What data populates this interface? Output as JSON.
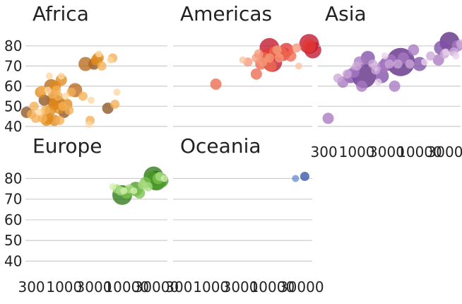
{
  "chart_data": {
    "type": "scatter",
    "x_scale": "log",
    "xlim": [
      240,
      45000
    ],
    "ylim": [
      35,
      87
    ],
    "x_ticks": [
      300,
      1000,
      3000,
      10000,
      30000
    ],
    "x_tick_labels": [
      "300",
      "1000",
      "3000",
      "10000",
      "30000"
    ],
    "y_ticks": [
      40,
      50,
      60,
      70,
      80
    ],
    "y_tick_labels": [
      "40",
      "50",
      "60",
      "70",
      "80"
    ],
    "grid": "horizontal",
    "panels": [
      {
        "name": "Africa",
        "colors": [
          "#ffd7a3",
          "#f5b054",
          "#e08a1c",
          "#b86a1e",
          "#8c5424"
        ],
        "points": [
          [
            250,
            47,
            4
          ],
          [
            300,
            46,
            1
          ],
          [
            330,
            50,
            1
          ],
          [
            350,
            44,
            1
          ],
          [
            400,
            47,
            0
          ],
          [
            420,
            57,
            2
          ],
          [
            450,
            58,
            1
          ],
          [
            480,
            53,
            4
          ],
          [
            500,
            48,
            1
          ],
          [
            520,
            43,
            2
          ],
          [
            550,
            44,
            2
          ],
          [
            550,
            58,
            0
          ],
          [
            580,
            65,
            0
          ],
          [
            600,
            48,
            2
          ],
          [
            620,
            60,
            3
          ],
          [
            650,
            56,
            1
          ],
          [
            680,
            53,
            3
          ],
          [
            700,
            51,
            2
          ],
          [
            700,
            43,
            2
          ],
          [
            720,
            60,
            2
          ],
          [
            750,
            58,
            1
          ],
          [
            780,
            52,
            3
          ],
          [
            800,
            55,
            1
          ],
          [
            830,
            49,
            2
          ],
          [
            850,
            43,
            1
          ],
          [
            900,
            65,
            0
          ],
          [
            900,
            63,
            2
          ],
          [
            950,
            50,
            1
          ],
          [
            1000,
            47,
            4
          ],
          [
            1050,
            55,
            0
          ],
          [
            1100,
            51,
            2
          ],
          [
            1200,
            48,
            1
          ],
          [
            1300,
            57,
            1
          ],
          [
            1500,
            58,
            3
          ],
          [
            2000,
            55,
            1
          ],
          [
            2200,
            71,
            3
          ],
          [
            2500,
            41,
            0
          ],
          [
            2600,
            43,
            1
          ],
          [
            3000,
            71,
            4
          ],
          [
            3300,
            73,
            2
          ],
          [
            3500,
            74,
            2
          ],
          [
            3600,
            76,
            0
          ],
          [
            4000,
            70,
            1
          ],
          [
            5000,
            49,
            4
          ],
          [
            5500,
            73,
            0
          ],
          [
            6000,
            74,
            1
          ],
          [
            6500,
            51,
            1
          ],
          [
            7000,
            57,
            0
          ],
          [
            2700,
            53,
            0
          ],
          [
            450,
            44,
            1
          ]
        ]
      },
      {
        "name": "Americas",
        "colors": [
          "#fbc4a0",
          "#f59a7a",
          "#ee6a4f",
          "#e33a35",
          "#c0162b"
        ],
        "points": [
          [
            1200,
            61,
            2
          ],
          [
            3300,
            73,
            0
          ],
          [
            4000,
            72,
            1
          ],
          [
            5500,
            74,
            1
          ],
          [
            5500,
            66,
            2
          ],
          [
            6500,
            71,
            2
          ],
          [
            7000,
            72,
            1
          ],
          [
            8000,
            75,
            3
          ],
          [
            9000,
            74,
            1
          ],
          [
            10000,
            72,
            4
          ],
          [
            10000,
            76,
            3
          ],
          [
            11000,
            77,
            2
          ],
          [
            12000,
            78,
            1
          ],
          [
            13000,
            74,
            1
          ],
          [
            14000,
            77,
            2
          ],
          [
            15000,
            76,
            3
          ],
          [
            17000,
            78,
            3
          ],
          [
            20000,
            75,
            2
          ],
          [
            25000,
            79,
            1
          ],
          [
            27000,
            70,
            0
          ],
          [
            40000,
            81,
            4
          ],
          [
            40000,
            80,
            3
          ],
          [
            46000,
            78,
            4
          ],
          [
            7600,
            74,
            2
          ],
          [
            9500,
            70,
            2
          ],
          [
            6000,
            76,
            1
          ],
          [
            9000,
            79,
            4
          ]
        ]
      },
      {
        "name": "Asia",
        "colors": [
          "#ead4ea",
          "#cca8d8",
          "#a878c2",
          "#8050a8",
          "#5e2a84"
        ],
        "points": [
          [
            350,
            44,
            2
          ],
          [
            500,
            64,
            1
          ],
          [
            600,
            62,
            2
          ],
          [
            700,
            66,
            1
          ],
          [
            800,
            65,
            3
          ],
          [
            900,
            67,
            2
          ],
          [
            1000,
            70,
            1
          ],
          [
            1100,
            72,
            2
          ],
          [
            1200,
            60,
            2
          ],
          [
            1300,
            65,
            4
          ],
          [
            1500,
            74,
            3
          ],
          [
            2000,
            68,
            1
          ],
          [
            2200,
            62,
            0
          ],
          [
            2500,
            65,
            3
          ],
          [
            2600,
            70,
            2
          ],
          [
            3000,
            71,
            3
          ],
          [
            3300,
            71,
            1
          ],
          [
            3500,
            73,
            2
          ],
          [
            4000,
            60,
            2
          ],
          [
            4500,
            71,
            1
          ],
          [
            5000,
            72,
            4
          ],
          [
            5500,
            74,
            2
          ],
          [
            7000,
            71,
            1
          ],
          [
            8000,
            78,
            2
          ],
          [
            10000,
            71,
            3
          ],
          [
            12000,
            72,
            0
          ],
          [
            15000,
            75,
            1
          ],
          [
            20000,
            73,
            2
          ],
          [
            22000,
            79,
            3
          ],
          [
            25000,
            76,
            1
          ],
          [
            26000,
            77,
            0
          ],
          [
            30000,
            82,
            4
          ],
          [
            35000,
            77,
            1
          ],
          [
            38000,
            75,
            0
          ],
          [
            40000,
            80,
            2
          ],
          [
            45000,
            81,
            1
          ],
          [
            2800,
            75,
            0
          ],
          [
            1800,
            71,
            1
          ]
        ]
      },
      {
        "name": "Europe",
        "colors": [
          "#d4f0b0",
          "#a8dc80",
          "#78c050",
          "#4c9a2a",
          "#2e7818"
        ],
        "points": [
          [
            6000,
            76,
            0
          ],
          [
            7000,
            75,
            1
          ],
          [
            8000,
            74,
            1
          ],
          [
            8500,
            72,
            4
          ],
          [
            9000,
            74,
            0
          ],
          [
            10000,
            73,
            2
          ],
          [
            11000,
            75,
            1
          ],
          [
            13000,
            74,
            0
          ],
          [
            14000,
            75,
            3
          ],
          [
            16000,
            73,
            2
          ],
          [
            18000,
            77,
            1
          ],
          [
            20000,
            78,
            2
          ],
          [
            22000,
            76,
            1
          ],
          [
            25000,
            80,
            3
          ],
          [
            27000,
            81,
            4
          ],
          [
            28000,
            78,
            3
          ],
          [
            30000,
            79,
            4
          ],
          [
            32000,
            80,
            2
          ],
          [
            34000,
            81,
            1
          ],
          [
            36000,
            79,
            3
          ],
          [
            40000,
            80,
            0
          ]
        ]
      },
      {
        "name": "Oceania",
        "colors": [
          "#6a8fd0",
          "#3a55a8"
        ],
        "points": [
          [
            24000,
            80,
            0
          ],
          [
            34000,
            81,
            1
          ]
        ]
      }
    ]
  }
}
